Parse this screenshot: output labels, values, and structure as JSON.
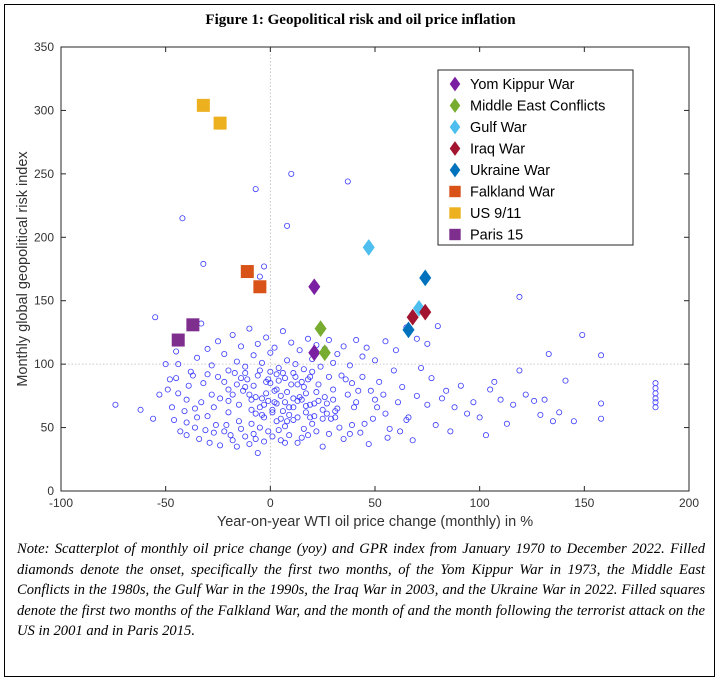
{
  "figure_title": "Figure 1: Geopolitical risk and oil price inflation",
  "note": "Note: Scatterplot of monthly oil price change (yoy) and GPR index from January 1970 to December 2022. Filled diamonds denote the onset, specifically the first two months, of the Yom Kippur War in 1973, the Middle East Conflicts in the 1980s, the Gulf War in the 1990s, the Iraq War in 2003, and the Ukraine War in 2022. Filled squares denote the first two months of the Falkland War, and the month of and the month following the terrorist attack on the US in 2001 and in Paris 2015.",
  "chart_data": {
    "type": "scatter",
    "title": "",
    "xlabel": "Year-on-year WTI oil price change (monthly) in %",
    "ylabel": "Monthly global geopolitical risk index",
    "xlim": [
      -100,
      200
    ],
    "ylim": [
      0,
      350
    ],
    "xticks": [
      -100,
      -50,
      0,
      50,
      100,
      150,
      200
    ],
    "yticks": [
      0,
      50,
      100,
      150,
      200,
      250,
      300,
      350
    ],
    "reference_lines": {
      "x": 0,
      "y": 100
    },
    "grid": false,
    "legend_position": "top-right",
    "background_series": {
      "marker": "open-circle",
      "color": "#3a3aff",
      "points": [
        [
          10,
          250
        ],
        [
          -7,
          238
        ],
        [
          37,
          244
        ],
        [
          -42,
          215
        ],
        [
          8,
          209
        ],
        [
          -3,
          177
        ],
        [
          -32,
          179
        ],
        [
          -5,
          169
        ],
        [
          119,
          153
        ],
        [
          -55,
          137
        ],
        [
          149,
          123
        ],
        [
          -33,
          132
        ],
        [
          133,
          108
        ],
        [
          158,
          107
        ],
        [
          -74,
          68
        ],
        [
          -62,
          64
        ],
        [
          -56,
          57
        ],
        [
          -53,
          76
        ],
        [
          -49,
          80
        ],
        [
          -47,
          66
        ],
        [
          -45,
          89
        ],
        [
          -44,
          100
        ],
        [
          -40,
          54
        ],
        [
          -36,
          65
        ],
        [
          -33,
          70
        ],
        [
          -30,
          59
        ],
        [
          -28,
          76
        ],
        [
          -26,
          52
        ],
        [
          -25,
          90
        ],
        [
          -22,
          47
        ],
        [
          -20,
          62
        ],
        [
          -18,
          40
        ],
        [
          -15,
          55
        ],
        [
          -12,
          82
        ],
        [
          -10,
          37
        ],
        [
          -8,
          45
        ],
        [
          -6,
          30
        ],
        [
          -4,
          60
        ],
        [
          -2,
          77
        ],
        [
          0,
          85
        ],
        [
          2,
          70
        ],
        [
          3,
          92
        ],
        [
          4,
          48
        ],
        [
          6,
          63
        ],
        [
          7,
          38
        ],
        [
          8,
          55
        ],
        [
          11,
          73
        ],
        [
          13,
          84
        ],
        [
          15,
          42
        ],
        [
          17,
          67
        ],
        [
          19,
          58
        ],
        [
          22,
          78
        ],
        [
          25,
          35
        ],
        [
          27,
          61
        ],
        [
          30,
          72
        ],
        [
          33,
          50
        ],
        [
          36,
          88
        ],
        [
          38,
          45
        ],
        [
          40,
          66
        ],
        [
          42,
          79
        ],
        [
          45,
          53
        ],
        [
          47,
          37
        ],
        [
          50,
          72
        ],
        [
          52,
          86
        ],
        [
          55,
          61
        ],
        [
          57,
          49
        ],
        [
          59,
          95
        ],
        [
          61,
          70
        ],
        [
          63,
          82
        ],
        [
          65,
          56
        ],
        [
          68,
          40
        ],
        [
          70,
          75
        ],
        [
          72,
          97
        ],
        [
          75,
          68
        ],
        [
          77,
          89
        ],
        [
          79,
          52
        ],
        [
          82,
          73
        ],
        [
          84,
          79
        ],
        [
          86,
          47
        ],
        [
          88,
          66
        ],
        [
          91,
          83
        ],
        [
          94,
          61
        ],
        [
          97,
          70
        ],
        [
          100,
          58
        ],
        [
          103,
          44
        ],
        [
          105,
          80
        ],
        [
          107,
          86
        ],
        [
          110,
          72
        ],
        [
          113,
          53
        ],
        [
          116,
          68
        ],
        [
          119,
          95
        ],
        [
          122,
          76
        ],
        [
          126,
          71
        ],
        [
          129,
          60
        ],
        [
          131,
          72
        ],
        [
          135,
          55
        ],
        [
          138,
          62
        ],
        [
          141,
          87
        ],
        [
          145,
          55
        ],
        [
          158,
          69
        ],
        [
          158,
          57
        ],
        [
          184,
          85
        ],
        [
          184,
          81
        ],
        [
          184,
          77
        ],
        [
          184,
          73
        ],
        [
          184,
          70
        ],
        [
          184,
          66
        ],
        [
          -50,
          100
        ],
        [
          -45,
          110
        ],
        [
          -40,
          72
        ],
        [
          -38,
          94
        ],
        [
          -35,
          105
        ],
        [
          -30,
          112
        ],
        [
          -28,
          99
        ],
        [
          -25,
          118
        ],
        [
          -22,
          108
        ],
        [
          -20,
          95
        ],
        [
          -18,
          123
        ],
        [
          -16,
          102
        ],
        [
          -14,
          114
        ],
        [
          -12,
          98
        ],
        [
          -10,
          128
        ],
        [
          -8,
          107
        ],
        [
          -6,
          116
        ],
        [
          -4,
          101
        ],
        [
          -2,
          121
        ],
        [
          0,
          109
        ],
        [
          2,
          113
        ],
        [
          4,
          97
        ],
        [
          6,
          126
        ],
        [
          8,
          103
        ],
        [
          10,
          117
        ],
        [
          12,
          100
        ],
        [
          14,
          111
        ],
        [
          16,
          96
        ],
        [
          18,
          120
        ],
        [
          20,
          104
        ],
        [
          22,
          115
        ],
        [
          24,
          98
        ],
        [
          26,
          112
        ],
        [
          28,
          119
        ],
        [
          30,
          101
        ],
        [
          32,
          108
        ],
        [
          35,
          114
        ],
        [
          38,
          99
        ],
        [
          41,
          119
        ],
        [
          44,
          106
        ],
        [
          46,
          113
        ],
        [
          50,
          103
        ],
        [
          55,
          118
        ],
        [
          60,
          111
        ],
        [
          65,
          129
        ],
        [
          70,
          120
        ],
        [
          75,
          116
        ],
        [
          80,
          130
        ],
        [
          -48,
          88
        ],
        [
          -44,
          77
        ],
        [
          -41,
          63
        ],
        [
          -39,
          83
        ],
        [
          -37,
          91
        ],
        [
          -35,
          58
        ],
        [
          -32,
          85
        ],
        [
          -30,
          92
        ],
        [
          -27,
          66
        ],
        [
          -24,
          73
        ],
        [
          -22,
          86
        ],
        [
          -20,
          71
        ],
        [
          -17,
          93
        ],
        [
          -15,
          68
        ],
        [
          -13,
          79
        ],
        [
          -11,
          88
        ],
        [
          -9,
          64
        ],
        [
          -7,
          74
        ],
        [
          -5,
          95
        ],
        [
          -3,
          68
        ],
        [
          -1,
          88
        ],
        [
          1,
          62
        ],
        [
          3,
          80
        ],
        [
          5,
          75
        ],
        [
          7,
          89
        ],
        [
          9,
          66
        ],
        [
          11,
          93
        ],
        [
          13,
          71
        ],
        [
          15,
          86
        ],
        [
          17,
          77
        ],
        [
          19,
          90
        ],
        [
          21,
          69
        ],
        [
          23,
          84
        ],
        [
          26,
          74
        ],
        [
          28,
          90
        ],
        [
          30,
          80
        ],
        [
          32,
          65
        ],
        [
          34,
          91
        ],
        [
          37,
          76
        ],
        [
          39,
          85
        ],
        [
          41,
          70
        ],
        [
          44,
          90
        ],
        [
          48,
          79
        ],
        [
          51,
          66
        ],
        [
          54,
          76
        ],
        [
          -46,
          56
        ],
        [
          -43,
          47
        ],
        [
          -40,
          44
        ],
        [
          -36,
          50
        ],
        [
          -34,
          41
        ],
        [
          -31,
          48
        ],
        [
          -29,
          38
        ],
        [
          -27,
          46
        ],
        [
          -24,
          36
        ],
        [
          -21,
          52
        ],
        [
          -19,
          44
        ],
        [
          -16,
          35
        ],
        [
          -14,
          49
        ],
        [
          -12,
          43
        ],
        [
          -9,
          53
        ],
        [
          -7,
          41
        ],
        [
          -5,
          50
        ],
        [
          -3,
          39
        ],
        [
          -1,
          47
        ],
        [
          1,
          43
        ],
        [
          3,
          55
        ],
        [
          5,
          40
        ],
        [
          7,
          51
        ],
        [
          9,
          44
        ],
        [
          11,
          56
        ],
        [
          13,
          38
        ],
        [
          16,
          49
        ],
        [
          18,
          44
        ],
        [
          20,
          53
        ],
        [
          22,
          47
        ],
        [
          25,
          57
        ],
        [
          28,
          45
        ],
        [
          31,
          58
        ],
        [
          35,
          41
        ],
        [
          39,
          52
        ],
        [
          43,
          46
        ],
        [
          49,
          57
        ],
        [
          56,
          42
        ],
        [
          62,
          47
        ],
        [
          66,
          58
        ],
        [
          -20,
          80
        ],
        [
          -18,
          76
        ],
        [
          -16,
          84
        ],
        [
          -14,
          89
        ],
        [
          -12,
          93
        ],
        [
          -10,
          76
        ],
        [
          -8,
          83
        ],
        [
          -6,
          91
        ],
        [
          -4,
          73
        ],
        [
          -2,
          86
        ],
        [
          0,
          94
        ],
        [
          2,
          79
        ],
        [
          4,
          87
        ],
        [
          6,
          93
        ],
        [
          8,
          78
        ],
        [
          10,
          84
        ],
        [
          12,
          90
        ],
        [
          14,
          74
        ],
        [
          16,
          82
        ],
        [
          18,
          88
        ],
        [
          20,
          94
        ],
        [
          -9,
          72
        ],
        [
          -7,
          61
        ],
        [
          -5,
          66
        ],
        [
          -3,
          58
        ],
        [
          -1,
          71
        ],
        [
          1,
          64
        ],
        [
          3,
          69
        ],
        [
          5,
          57
        ],
        [
          7,
          70
        ],
        [
          9,
          60
        ],
        [
          11,
          66
        ],
        [
          13,
          58
        ],
        [
          15,
          72
        ],
        [
          17,
          62
        ],
        [
          19,
          68
        ],
        [
          21,
          59
        ],
        [
          23,
          71
        ],
        [
          25,
          64
        ],
        [
          27,
          69
        ],
        [
          29,
          57
        ],
        [
          31,
          63
        ]
      ]
    },
    "highlighted_series": [
      {
        "name": "Yom Kippur War",
        "marker": "diamond",
        "color": "#7a1fa2",
        "points": [
          [
            21,
            161
          ],
          [
            21,
            109
          ]
        ]
      },
      {
        "name": "Middle East Conflicts",
        "marker": "diamond",
        "color": "#77ac30",
        "points": [
          [
            24,
            128
          ],
          [
            26,
            109
          ]
        ]
      },
      {
        "name": "Gulf War",
        "marker": "diamond",
        "color": "#4dbeee",
        "points": [
          [
            47,
            192
          ],
          [
            71,
            144
          ]
        ]
      },
      {
        "name": "Iraq War",
        "marker": "diamond",
        "color": "#a2142f",
        "points": [
          [
            68,
            137
          ],
          [
            74,
            141
          ]
        ]
      },
      {
        "name": "Ukraine War",
        "marker": "diamond",
        "color": "#0072bd",
        "points": [
          [
            74,
            168
          ],
          [
            66,
            127
          ]
        ]
      },
      {
        "name": "Falkland War",
        "marker": "square",
        "color": "#d95319",
        "points": [
          [
            -11,
            173
          ],
          [
            -5,
            161
          ]
        ]
      },
      {
        "name": "US 9/11",
        "marker": "square",
        "color": "#edb120",
        "points": [
          [
            -32,
            304
          ],
          [
            -24,
            290
          ]
        ]
      },
      {
        "name": "Paris 15",
        "marker": "square",
        "color": "#7e2f8e",
        "points": [
          [
            -37,
            131
          ],
          [
            -44,
            119
          ]
        ]
      }
    ]
  }
}
